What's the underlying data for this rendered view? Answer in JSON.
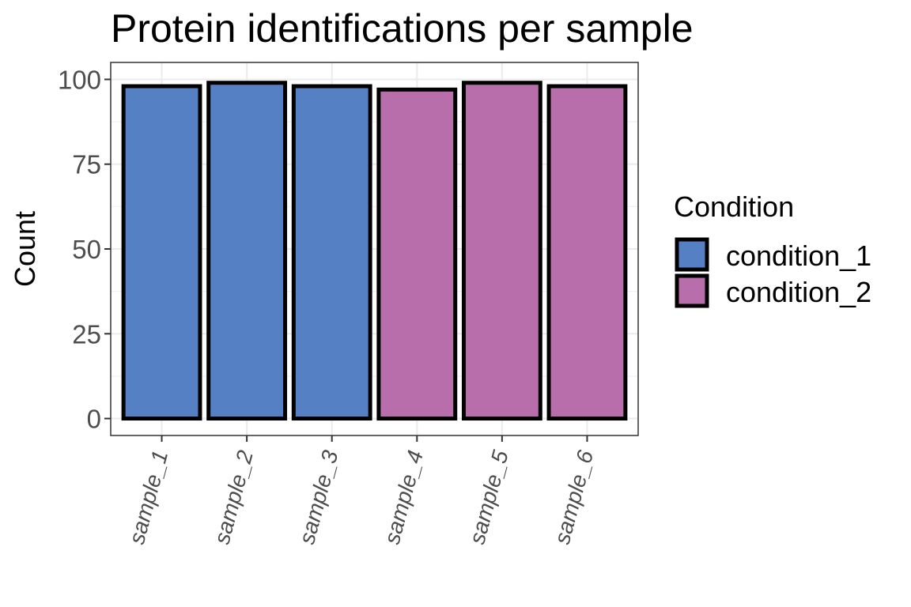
{
  "chart_data": {
    "type": "bar",
    "title": "Protein identifications per sample",
    "xlabel": "",
    "ylabel": "Count",
    "categories": [
      "sample_1",
      "sample_2",
      "sample_3",
      "sample_4",
      "sample_5",
      "sample_6"
    ],
    "values": [
      98,
      99,
      98,
      97,
      99,
      98
    ],
    "groups": [
      "condition_1",
      "condition_1",
      "condition_1",
      "condition_2",
      "condition_2",
      "condition_2"
    ],
    "ylim": [
      0,
      100
    ],
    "yticks": [
      0,
      25,
      50,
      75,
      100
    ],
    "grid": true,
    "legend": {
      "title": "Condition",
      "placement": "right",
      "entries": [
        {
          "name": "condition_1",
          "color": "#5680C4"
        },
        {
          "name": "condition_2",
          "color": "#B86EAA"
        }
      ]
    }
  }
}
